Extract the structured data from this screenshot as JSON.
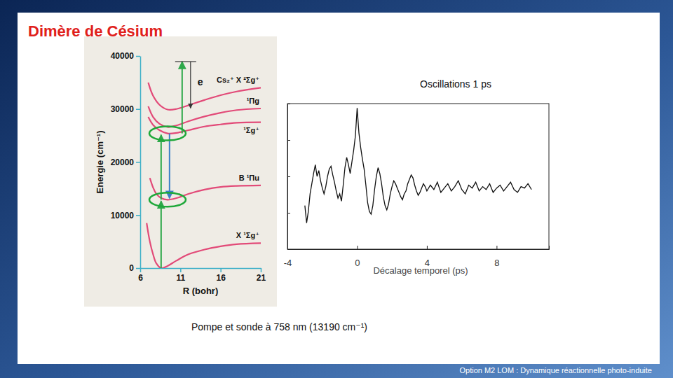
{
  "title": "Dimère de Césium",
  "caption": "Pompe et sonde à 758 nm (13190 cm⁻¹)",
  "footer": "Option M2 LOM : Dynamique réactionnelle photo-induite",
  "chart_data": [
    {
      "type": "line",
      "x_label": "R (bohr)",
      "y_label": "Energie (cm⁻¹)",
      "annotations": [
        "e"
      ],
      "xlim": [
        6,
        21
      ],
      "xticks": [
        6,
        11,
        16,
        21
      ],
      "ylim": [
        0,
        40000
      ],
      "yticks": [
        0,
        10000,
        20000,
        30000,
        40000
      ],
      "series": [
        {
          "name": "X ¹Σg⁺",
          "color": "#e24a78",
          "x": [
            6.8,
            7.2,
            7.6,
            8,
            8.6,
            9.4,
            10.5,
            12,
            14,
            16,
            18,
            21
          ],
          "values": [
            8500,
            5000,
            2600,
            900,
            0,
            400,
            1400,
            2600,
            3500,
            4100,
            4500,
            4700
          ]
        },
        {
          "name": "B ¹Πu",
          "color": "#e24a78",
          "x": [
            7.2,
            7.6,
            8,
            8.6,
            9.4,
            10.5,
            12,
            14,
            16,
            18,
            21
          ],
          "values": [
            17000,
            15200,
            14000,
            13200,
            12900,
            13200,
            14000,
            14800,
            15300,
            15500,
            15600
          ]
        },
        {
          "name": "¹Σg⁺",
          "color": "#e24a78",
          "x": [
            7,
            7.6,
            8.4,
            9.4,
            10.5,
            12,
            14,
            16,
            18,
            21
          ],
          "values": [
            28500,
            27000,
            26000,
            25400,
            25500,
            26000,
            26700,
            27100,
            27400,
            27500
          ]
        },
        {
          "name": "¹Πg",
          "color": "#e24a78",
          "x": [
            7,
            7.6,
            8.4,
            9.4,
            10.5,
            12,
            14,
            16,
            18,
            21
          ],
          "values": [
            30500,
            28500,
            27200,
            26600,
            26900,
            27700,
            28600,
            29300,
            29800,
            30100
          ]
        },
        {
          "name": "Cs₂⁺ X ²Σg⁺",
          "color": "#e24a78",
          "x": [
            7,
            7.6,
            8.4,
            9.4,
            10.5,
            12,
            14,
            16,
            18,
            21
          ],
          "values": [
            35000,
            32500,
            30800,
            29900,
            30000,
            30700,
            31700,
            32600,
            33300,
            34000
          ]
        }
      ]
    },
    {
      "type": "line",
      "title": "Oscillations 1 ps",
      "x_label": "Décalage temporel (ps)",
      "color": "#111111",
      "tick_labels": "x",
      "xlim": [
        -4,
        11
      ],
      "xticks": [
        -4,
        0,
        4,
        8
      ],
      "ylim": [
        0,
        100
      ],
      "yticks": [
        0,
        25,
        50,
        75,
        100
      ],
      "x": [
        -3,
        -2.9,
        -2.8,
        -2.7,
        -2.6,
        -2.5,
        -2.4,
        -2.3,
        -2.2,
        -2.1,
        -2,
        -1.9,
        -1.8,
        -1.7,
        -1.6,
        -1.5,
        -1.4,
        -1.3,
        -1.2,
        -1.1,
        -1,
        -0.9,
        -0.8,
        -0.7,
        -0.6,
        -0.5,
        -0.4,
        -0.3,
        -0.2,
        -0.1,
        0,
        0.1,
        0.2,
        0.3,
        0.4,
        0.5,
        0.6,
        0.7,
        0.8,
        0.9,
        1,
        1.1,
        1.2,
        1.3,
        1.4,
        1.5,
        1.6,
        1.7,
        1.8,
        1.9,
        2,
        2.1,
        2.2,
        2.3,
        2.4,
        2.5,
        2.6,
        2.7,
        2.8,
        2.9,
        3,
        3.1,
        3.2,
        3.3,
        3.4,
        3.5,
        3.6,
        3.7,
        3.8,
        3.9,
        4,
        4.2,
        4.4,
        4.6,
        4.8,
        5,
        5.2,
        5.4,
        5.6,
        5.8,
        6,
        6.2,
        6.4,
        6.6,
        6.8,
        7,
        7.2,
        7.4,
        7.6,
        7.8,
        8,
        8.2,
        8.4,
        8.6,
        8.8,
        9,
        9.2,
        9.4,
        9.6,
        9.8,
        10
      ],
      "values": [
        30,
        18,
        26,
        38,
        45,
        52,
        58,
        50,
        54,
        47,
        42,
        38,
        43,
        50,
        55,
        57,
        51,
        46,
        40,
        35,
        38,
        33,
        44,
        56,
        63,
        58,
        52,
        60,
        68,
        78,
        97,
        80,
        70,
        62,
        55,
        44,
        32,
        26,
        24,
        30,
        41,
        50,
        56,
        52,
        45,
        36,
        30,
        27,
        31,
        38,
        43,
        47,
        45,
        42,
        39,
        36,
        34,
        38,
        40,
        45,
        48,
        51,
        49,
        44,
        40,
        37,
        39,
        42,
        45,
        43,
        40,
        44,
        41,
        46,
        39,
        42,
        45,
        40,
        43,
        47,
        41,
        38,
        44,
        42,
        46,
        40,
        43,
        41,
        45,
        39,
        42,
        44,
        40,
        43,
        46,
        41,
        39,
        43,
        42,
        45,
        41
      ]
    }
  ]
}
